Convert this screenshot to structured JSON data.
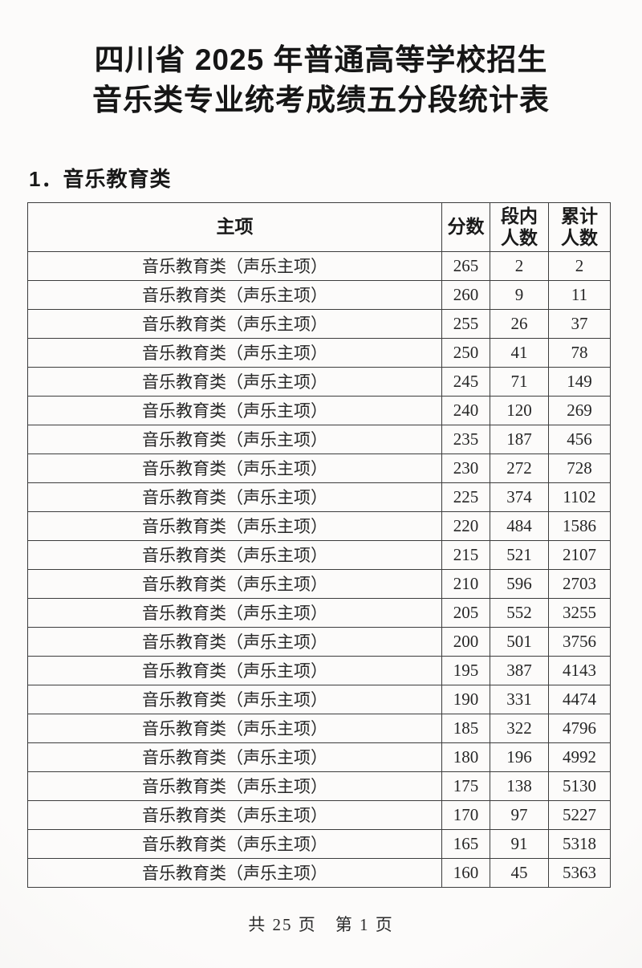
{
  "page": {
    "title_line1": "四川省 2025 年普通高等学校招生",
    "title_line2": "音乐类专业统考成绩五分段统计表",
    "section_heading": "1．音乐教育类",
    "footer_pagination": "共 25 页　第 1 页"
  },
  "colors": {
    "ink": "#1f1f1f",
    "paper": "#fbfaf9",
    "table_border": "#3c3c3c"
  },
  "table": {
    "columns": [
      "主项",
      "分数",
      "段内\n人数",
      "累计\n人数"
    ],
    "rows": [
      [
        "音乐教育类（声乐主项）",
        "265",
        "2",
        "2"
      ],
      [
        "音乐教育类（声乐主项）",
        "260",
        "9",
        "11"
      ],
      [
        "音乐教育类（声乐主项）",
        "255",
        "26",
        "37"
      ],
      [
        "音乐教育类（声乐主项）",
        "250",
        "41",
        "78"
      ],
      [
        "音乐教育类（声乐主项）",
        "245",
        "71",
        "149"
      ],
      [
        "音乐教育类（声乐主项）",
        "240",
        "120",
        "269"
      ],
      [
        "音乐教育类（声乐主项）",
        "235",
        "187",
        "456"
      ],
      [
        "音乐教育类（声乐主项）",
        "230",
        "272",
        "728"
      ],
      [
        "音乐教育类（声乐主项）",
        "225",
        "374",
        "1102"
      ],
      [
        "音乐教育类（声乐主项）",
        "220",
        "484",
        "1586"
      ],
      [
        "音乐教育类（声乐主项）",
        "215",
        "521",
        "2107"
      ],
      [
        "音乐教育类（声乐主项）",
        "210",
        "596",
        "2703"
      ],
      [
        "音乐教育类（声乐主项）",
        "205",
        "552",
        "3255"
      ],
      [
        "音乐教育类（声乐主项）",
        "200",
        "501",
        "3756"
      ],
      [
        "音乐教育类（声乐主项）",
        "195",
        "387",
        "4143"
      ],
      [
        "音乐教育类（声乐主项）",
        "190",
        "331",
        "4474"
      ],
      [
        "音乐教育类（声乐主项）",
        "185",
        "322",
        "4796"
      ],
      [
        "音乐教育类（声乐主项）",
        "180",
        "196",
        "4992"
      ],
      [
        "音乐教育类（声乐主项）",
        "175",
        "138",
        "5130"
      ],
      [
        "音乐教育类（声乐主项）",
        "170",
        "97",
        "5227"
      ],
      [
        "音乐教育类（声乐主项）",
        "165",
        "91",
        "5318"
      ],
      [
        "音乐教育类（声乐主项）",
        "160",
        "45",
        "5363"
      ]
    ]
  }
}
